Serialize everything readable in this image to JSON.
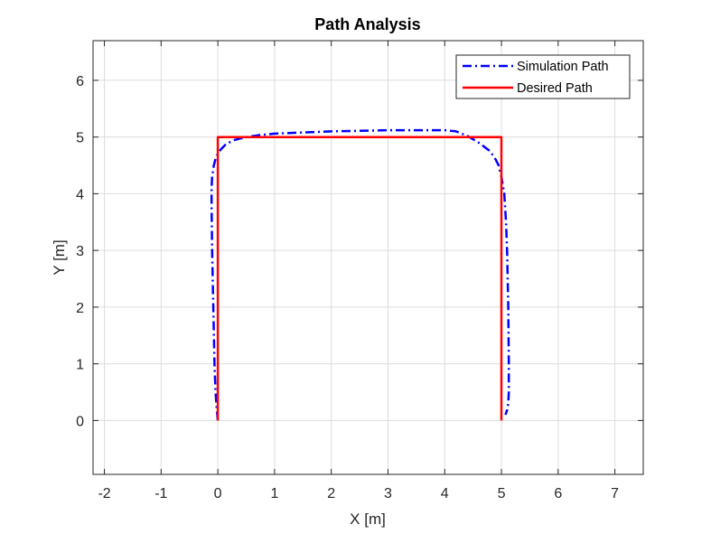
{
  "chart_data": {
    "type": "line",
    "title": "Path Analysis",
    "xlabel": "X [m]",
    "ylabel": "Y [m]",
    "xlim": [
      -2.2,
      7.5
    ],
    "ylim": [
      -0.95,
      6.7
    ],
    "xticks": [
      -2,
      -1,
      0,
      1,
      2,
      3,
      4,
      5,
      6,
      7
    ],
    "yticks": [
      0,
      1,
      2,
      3,
      4,
      5,
      6
    ],
    "grid": true,
    "legend_position": "top-right",
    "series": [
      {
        "name": "Simulation Path",
        "color": "#0000ff",
        "style": "dash-dot",
        "x": [
          0.0,
          -0.02,
          -0.04,
          -0.06,
          -0.08,
          -0.1,
          -0.11,
          -0.11,
          -0.1,
          -0.07,
          -0.03,
          0.05,
          0.15,
          0.3,
          0.5,
          0.7,
          1.0,
          1.5,
          2.0,
          2.5,
          3.0,
          3.5,
          4.0,
          4.2,
          4.4,
          4.6,
          4.8,
          4.9,
          4.95,
          5.0,
          5.05,
          5.08,
          5.1,
          5.12,
          5.13,
          5.13,
          5.12,
          5.1,
          5.07
        ],
        "y": [
          0.0,
          0.2,
          0.5,
          1.0,
          2.0,
          3.0,
          3.8,
          4.1,
          4.3,
          4.5,
          4.65,
          4.78,
          4.88,
          4.95,
          5.0,
          5.03,
          5.06,
          5.08,
          5.1,
          5.11,
          5.12,
          5.12,
          5.12,
          5.1,
          5.02,
          4.9,
          4.75,
          4.6,
          4.5,
          4.3,
          4.0,
          3.5,
          3.0,
          2.0,
          1.0,
          0.5,
          0.3,
          0.18,
          0.1
        ]
      },
      {
        "name": "Desired Path",
        "color": "#ff0000",
        "style": "solid",
        "x": [
          0,
          0,
          5,
          5
        ],
        "y": [
          0,
          5,
          5,
          0
        ]
      }
    ]
  }
}
